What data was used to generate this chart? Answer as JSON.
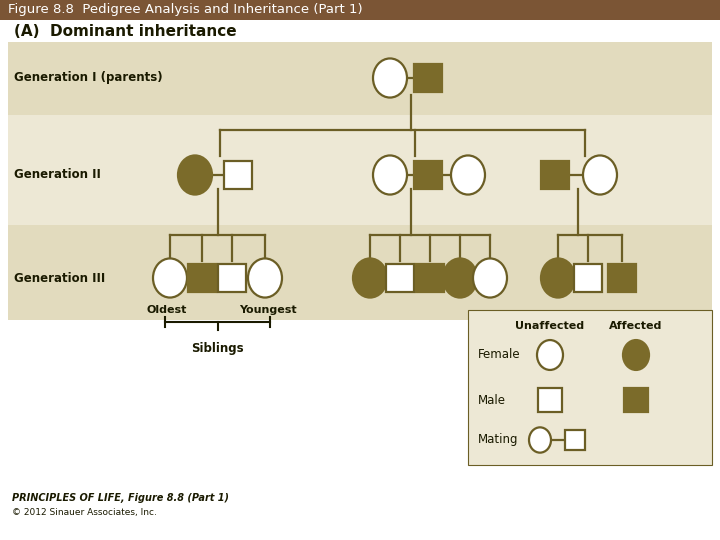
{
  "title": "Figure 8.8  Pedigree Analysis and Inheritance (Part 1)",
  "title_bar_color": "#7B5535",
  "title_text_color": "#FFFFFF",
  "bg_color": "#FFFFFF",
  "panel_bg": "#EDE8D5",
  "panel_stripe": "#E2DBBE",
  "affected_color": "#7B6B2A",
  "unaffected_fill": "#FFFFFF",
  "line_color": "#6B5E25",
  "subtitle": "(A)  Dominant inheritance",
  "gen_labels": [
    "Generation I (parents)",
    "Generation II",
    "Generation III"
  ],
  "footer1": "PRINCIPLES OF LIFE, Figure 8.8 (Part 1)",
  "footer2": "© 2012 Sinauer Associates, Inc."
}
